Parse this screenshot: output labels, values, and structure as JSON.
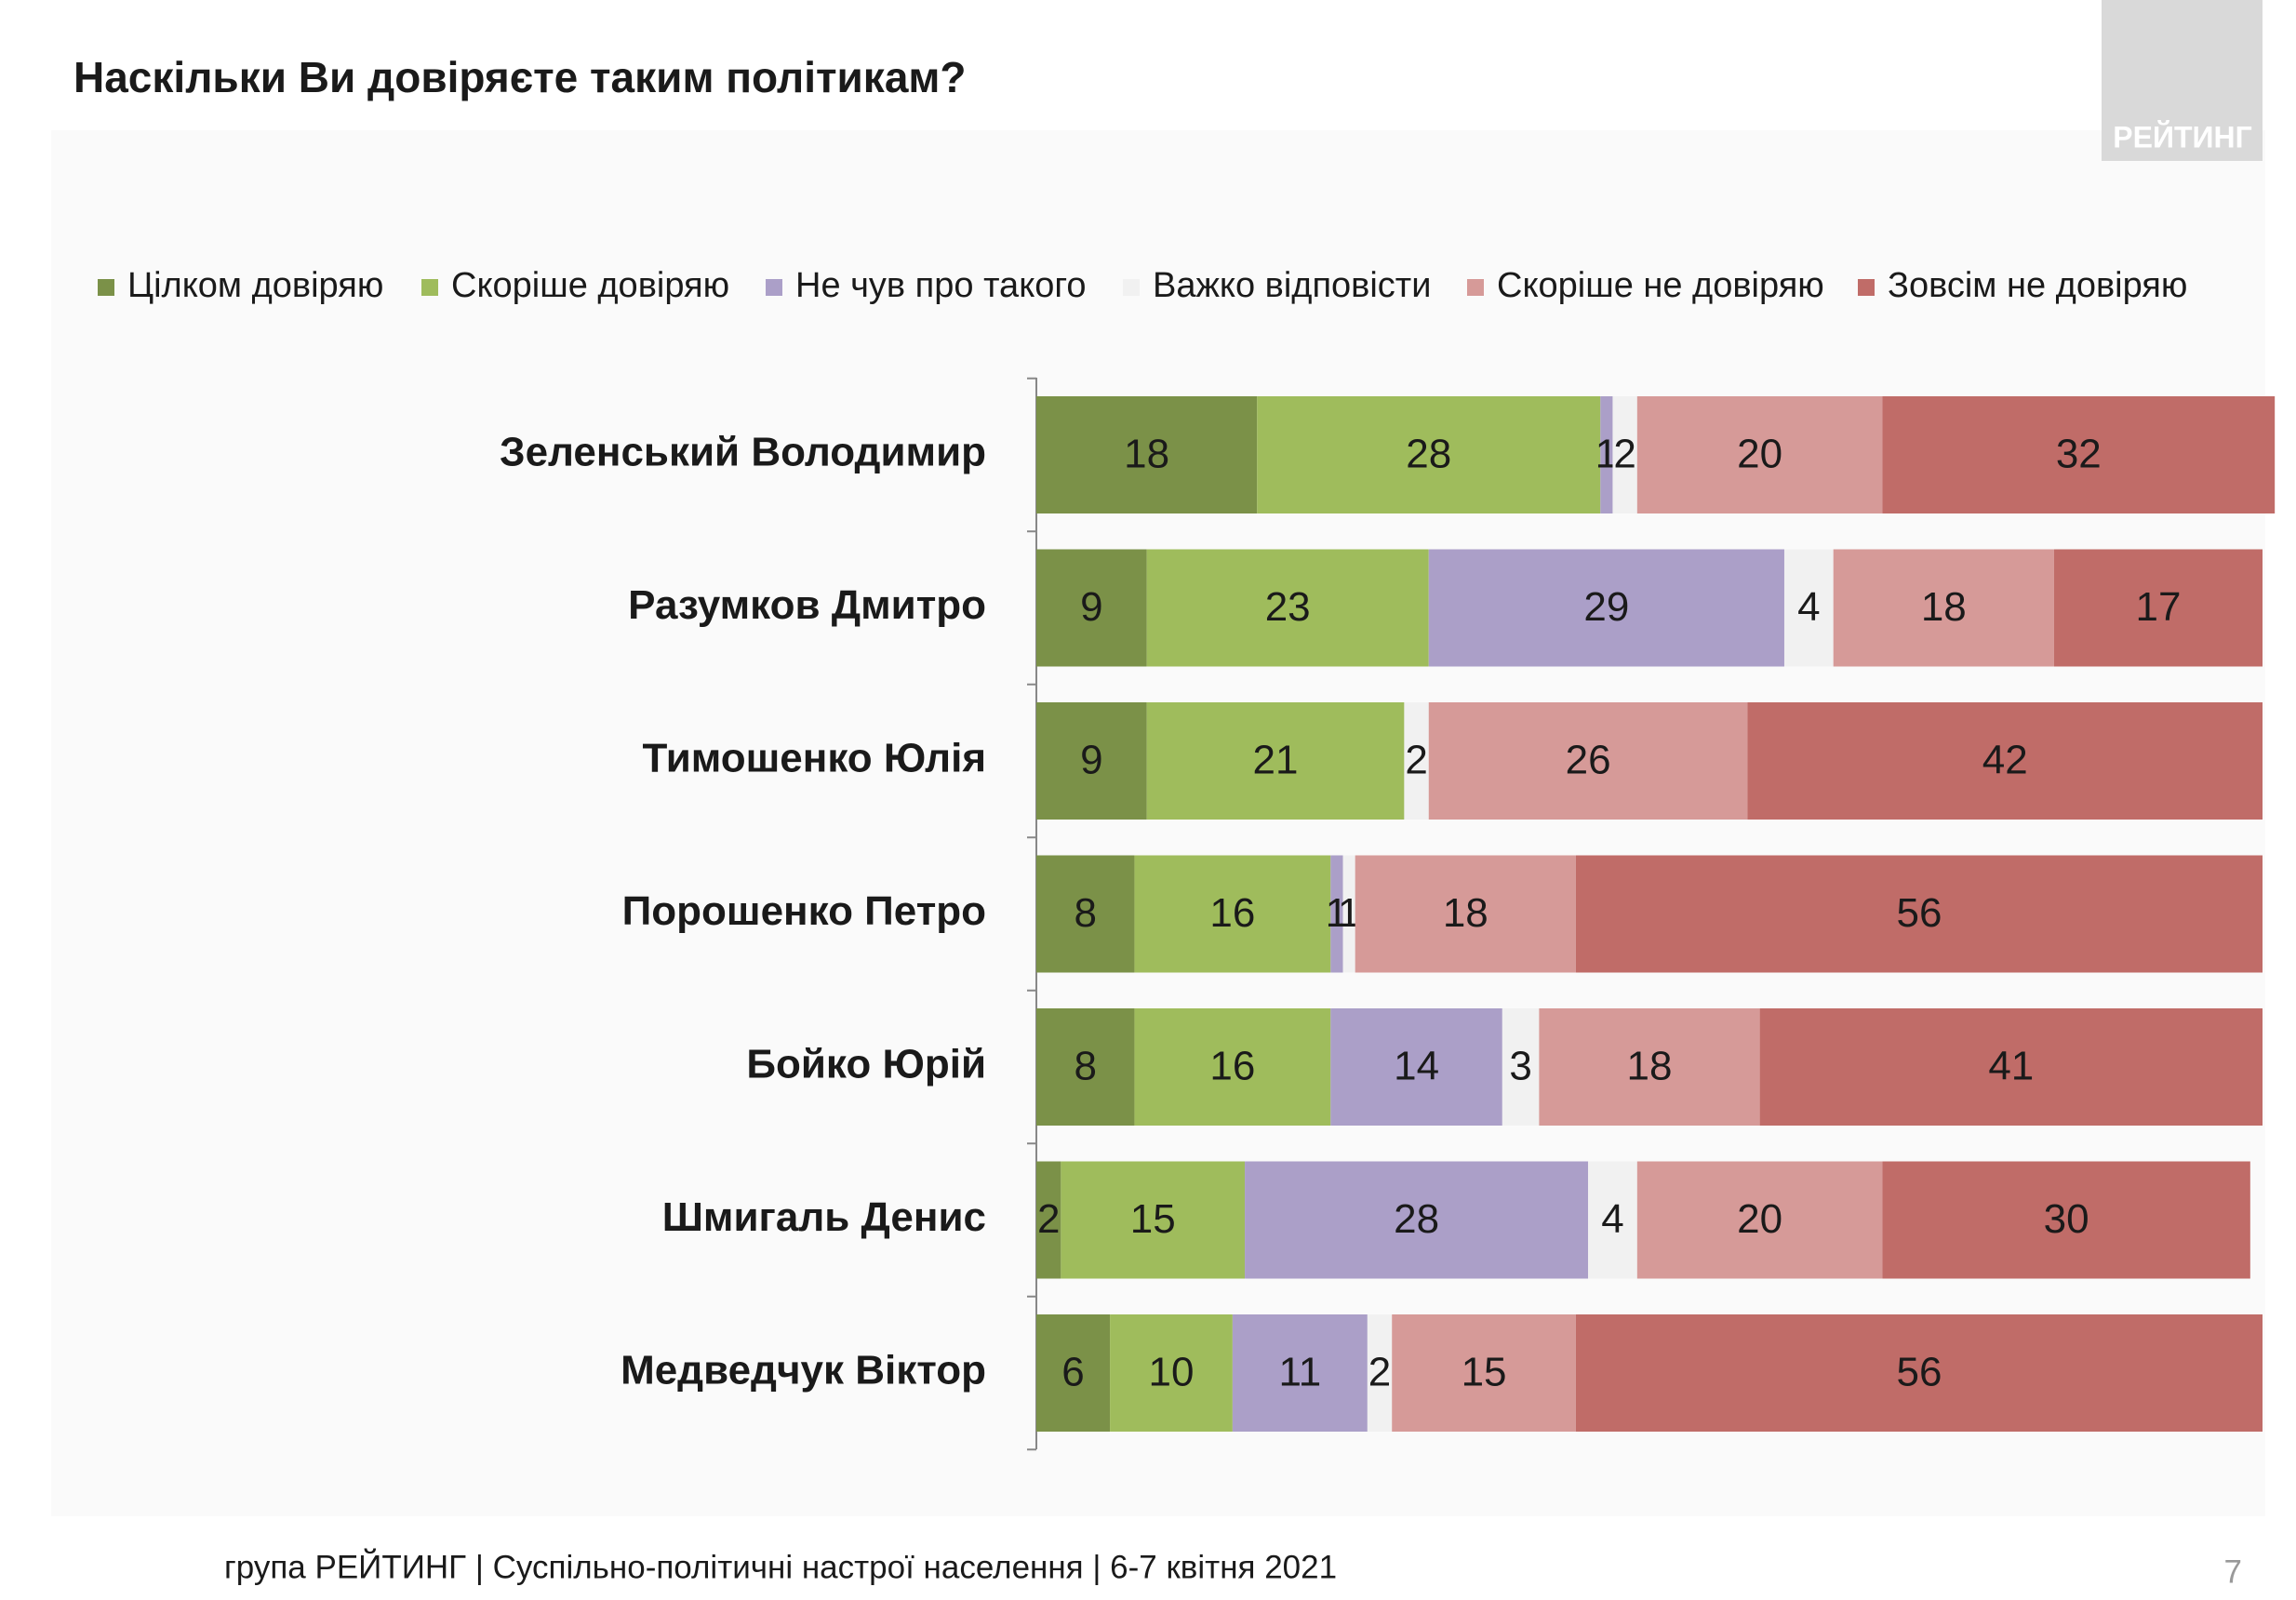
{
  "chart_data": {
    "type": "stacked-bar-horizontal",
    "title": "Наскільки Ви довіряєте таким політикам?",
    "logo": "РЕЙТИНГ",
    "footer": "група РЕЙТИНГ | Суспільно-політичні настрої населення | 6-7 квітня 2021",
    "page_number": "7",
    "categories": [
      "Зеленський Володимир",
      "Разумков Дмитро",
      "Тимошенко Юлія",
      "Порошенко Петро",
      "Бойко Юрій",
      "Шмигаль Денис",
      "Медведчук Віктор"
    ],
    "xlim": [
      0,
      100
    ],
    "series": [
      {
        "name": "Цілком довіряю",
        "color": "#7b9148",
        "values": [
          18,
          9,
          9,
          8,
          8,
          2,
          6
        ]
      },
      {
        "name": "Скоріше довіряю",
        "color": "#9fbc5c",
        "values": [
          28,
          23,
          21,
          16,
          16,
          15,
          10
        ]
      },
      {
        "name": "Не чув про такого",
        "color": "#ab9fc8",
        "values": [
          1,
          29,
          null,
          1,
          14,
          28,
          11
        ]
      },
      {
        "name": "Важко відповісти",
        "color": "#f1f1f1",
        "values": [
          2,
          4,
          2,
          1,
          3,
          4,
          2
        ]
      },
      {
        "name": "Скоріше не довіряю",
        "color": "#d69a98",
        "values": [
          20,
          18,
          26,
          18,
          18,
          20,
          15
        ]
      },
      {
        "name": "Зовсім не довіряю",
        "color": "#c06c68",
        "values": [
          32,
          17,
          42,
          56,
          41,
          30,
          56
        ]
      }
    ]
  }
}
